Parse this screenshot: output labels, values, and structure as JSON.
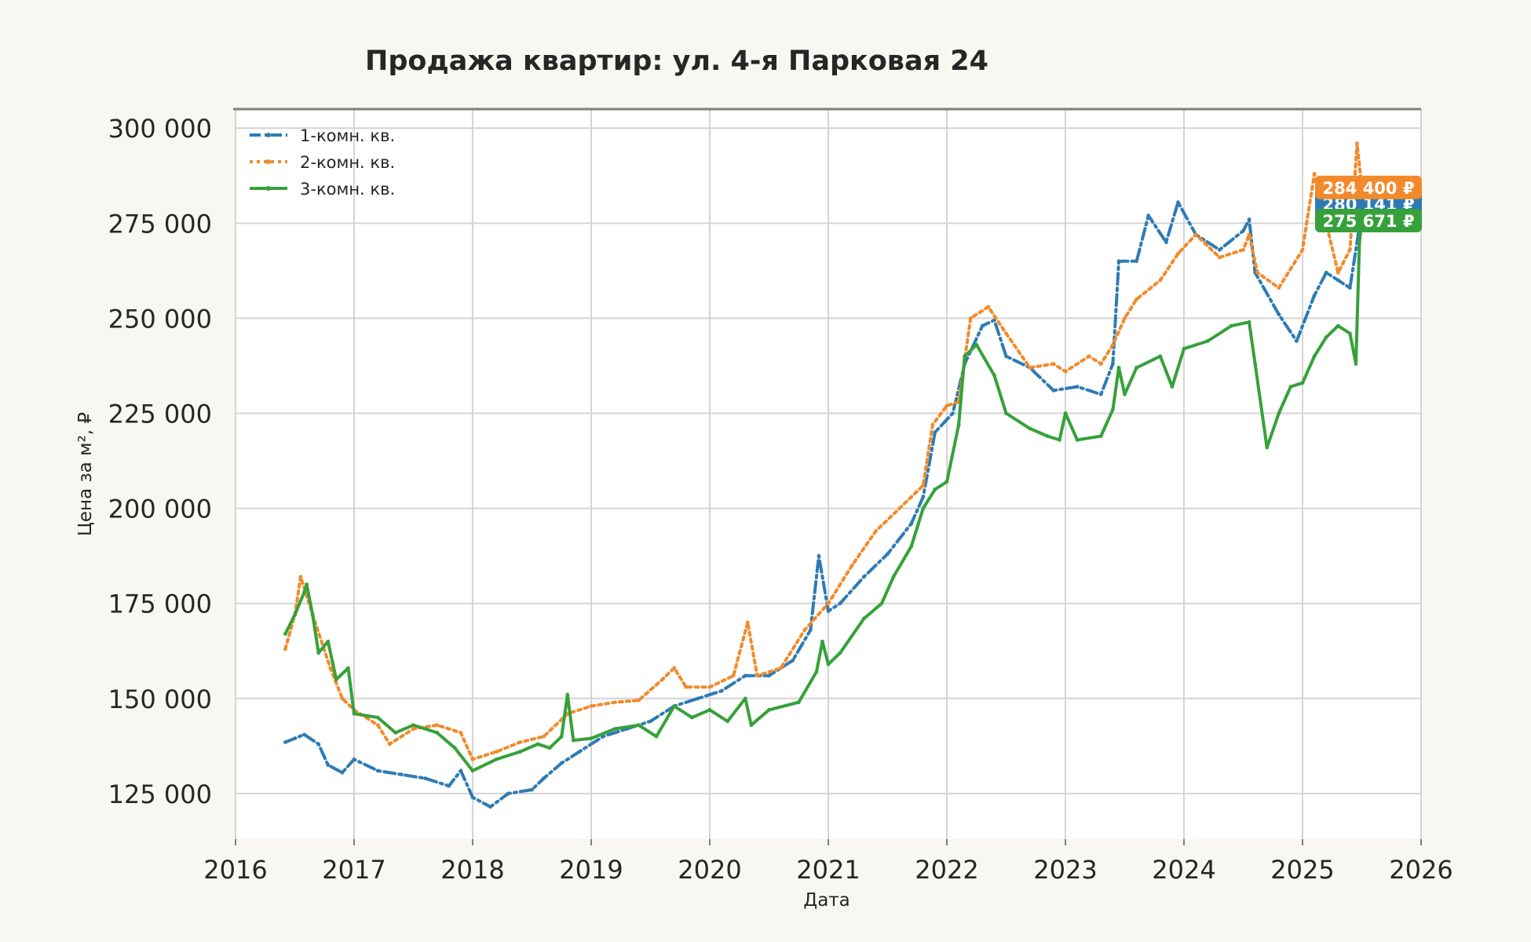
{
  "chart_data": {
    "type": "line",
    "title": "Продажа квартир: ул. 4-я Парковая 24",
    "xlabel": "Дата",
    "ylabel": "Цена за м², ₽",
    "xlim": [
      2016,
      2026
    ],
    "ylim": [
      113000,
      305000
    ],
    "x_ticks": [
      2016,
      2017,
      2018,
      2019,
      2020,
      2021,
      2022,
      2023,
      2024,
      2025,
      2026
    ],
    "x_tick_labels": [
      "2016",
      "2017",
      "2018",
      "2019",
      "2020",
      "2021",
      "2022",
      "2023",
      "2024",
      "2025",
      "2026"
    ],
    "y_ticks": [
      125000,
      150000,
      175000,
      200000,
      225000,
      250000,
      275000,
      300000
    ],
    "y_tick_labels": [
      "125 000",
      "150 000",
      "175 000",
      "200 000",
      "225 000",
      "250 000",
      "275 000",
      "300 000"
    ],
    "grid": true,
    "legend_position": "top-left",
    "series": [
      {
        "name": "1-комн. кв.",
        "color": "#2e7bb4",
        "dash": "dashdot",
        "last_value_label": "280 141 ₽",
        "points": [
          [
            2016.42,
            138500
          ],
          [
            2016.5,
            139500
          ],
          [
            2016.58,
            140500
          ],
          [
            2016.7,
            138000
          ],
          [
            2016.78,
            132500
          ],
          [
            2016.9,
            130500
          ],
          [
            2017.0,
            134000
          ],
          [
            2017.2,
            131000
          ],
          [
            2017.4,
            130000
          ],
          [
            2017.6,
            129000
          ],
          [
            2017.8,
            127000
          ],
          [
            2017.9,
            131000
          ],
          [
            2018.0,
            124000
          ],
          [
            2018.15,
            121500
          ],
          [
            2018.3,
            125000
          ],
          [
            2018.5,
            126000
          ],
          [
            2018.6,
            129000
          ],
          [
            2018.75,
            133000
          ],
          [
            2018.9,
            136000
          ],
          [
            2019.1,
            140000
          ],
          [
            2019.3,
            142000
          ],
          [
            2019.5,
            144000
          ],
          [
            2019.7,
            148000
          ],
          [
            2019.9,
            150000
          ],
          [
            2020.1,
            152000
          ],
          [
            2020.3,
            156000
          ],
          [
            2020.5,
            156000
          ],
          [
            2020.7,
            160000
          ],
          [
            2020.85,
            168000
          ],
          [
            2020.92,
            187500
          ],
          [
            2021.0,
            173000
          ],
          [
            2021.1,
            175000
          ],
          [
            2021.3,
            182000
          ],
          [
            2021.5,
            188000
          ],
          [
            2021.7,
            196000
          ],
          [
            2021.8,
            203000
          ],
          [
            2021.9,
            220000
          ],
          [
            2022.05,
            225000
          ],
          [
            2022.15,
            238000
          ],
          [
            2022.3,
            248000
          ],
          [
            2022.4,
            249500
          ],
          [
            2022.5,
            240000
          ],
          [
            2022.7,
            237000
          ],
          [
            2022.9,
            231000
          ],
          [
            2023.1,
            232000
          ],
          [
            2023.3,
            230000
          ],
          [
            2023.4,
            238000
          ],
          [
            2023.45,
            265000
          ],
          [
            2023.6,
            265000
          ],
          [
            2023.7,
            277000
          ],
          [
            2023.85,
            270000
          ],
          [
            2023.95,
            280500
          ],
          [
            2024.1,
            272000
          ],
          [
            2024.3,
            268000
          ],
          [
            2024.5,
            273000
          ],
          [
            2024.55,
            276000
          ],
          [
            2024.6,
            262000
          ],
          [
            2024.8,
            251000
          ],
          [
            2024.95,
            244000
          ],
          [
            2025.1,
            256000
          ],
          [
            2025.2,
            262000
          ],
          [
            2025.3,
            260000
          ],
          [
            2025.4,
            258000
          ],
          [
            2025.47,
            272000
          ],
          [
            2025.5,
            280141
          ]
        ]
      },
      {
        "name": "2-комн. кв.",
        "color": "#f28a2b",
        "dash": "dotted",
        "last_value_label": "284 400 ₽",
        "points": [
          [
            2016.42,
            163000
          ],
          [
            2016.5,
            172000
          ],
          [
            2016.55,
            182000
          ],
          [
            2016.65,
            172000
          ],
          [
            2016.8,
            158000
          ],
          [
            2016.9,
            150000
          ],
          [
            2017.0,
            147000
          ],
          [
            2017.2,
            143000
          ],
          [
            2017.3,
            138000
          ],
          [
            2017.5,
            142000
          ],
          [
            2017.7,
            143000
          ],
          [
            2017.9,
            141000
          ],
          [
            2018.0,
            134000
          ],
          [
            2018.2,
            136000
          ],
          [
            2018.4,
            138500
          ],
          [
            2018.6,
            140000
          ],
          [
            2018.8,
            146000
          ],
          [
            2019.0,
            148000
          ],
          [
            2019.2,
            149000
          ],
          [
            2019.4,
            149500
          ],
          [
            2019.6,
            155000
          ],
          [
            2019.7,
            158000
          ],
          [
            2019.8,
            153000
          ],
          [
            2020.0,
            153000
          ],
          [
            2020.2,
            156000
          ],
          [
            2020.32,
            170000
          ],
          [
            2020.4,
            156000
          ],
          [
            2020.6,
            158000
          ],
          [
            2020.8,
            168000
          ],
          [
            2021.0,
            175000
          ],
          [
            2021.2,
            185000
          ],
          [
            2021.4,
            194000
          ],
          [
            2021.6,
            200000
          ],
          [
            2021.8,
            206000
          ],
          [
            2021.88,
            222000
          ],
          [
            2022.0,
            227000
          ],
          [
            2022.1,
            228000
          ],
          [
            2022.2,
            250000
          ],
          [
            2022.35,
            253000
          ],
          [
            2022.5,
            246000
          ],
          [
            2022.7,
            237000
          ],
          [
            2022.9,
            238000
          ],
          [
            2023.0,
            236000
          ],
          [
            2023.2,
            240000
          ],
          [
            2023.3,
            238000
          ],
          [
            2023.4,
            243000
          ],
          [
            2023.5,
            250000
          ],
          [
            2023.6,
            255000
          ],
          [
            2023.8,
            260000
          ],
          [
            2023.95,
            267000
          ],
          [
            2024.1,
            272000
          ],
          [
            2024.3,
            266000
          ],
          [
            2024.5,
            268000
          ],
          [
            2024.55,
            272000
          ],
          [
            2024.62,
            262000
          ],
          [
            2024.8,
            258000
          ],
          [
            2025.0,
            268000
          ],
          [
            2025.1,
            288000
          ],
          [
            2025.2,
            275000
          ],
          [
            2025.3,
            262000
          ],
          [
            2025.4,
            268000
          ],
          [
            2025.46,
            296000
          ],
          [
            2025.5,
            284400
          ]
        ]
      },
      {
        "name": "3-комн. кв.",
        "color": "#36a13a",
        "dash": "solid",
        "last_value_label": "275 671 ₽",
        "points": [
          [
            2016.42,
            167000
          ],
          [
            2016.5,
            172000
          ],
          [
            2016.58,
            178000
          ],
          [
            2016.6,
            180000
          ],
          [
            2016.65,
            172000
          ],
          [
            2016.7,
            162000
          ],
          [
            2016.78,
            165000
          ],
          [
            2016.85,
            155000
          ],
          [
            2016.95,
            158000
          ],
          [
            2017.0,
            146000
          ],
          [
            2017.2,
            145000
          ],
          [
            2017.35,
            141000
          ],
          [
            2017.5,
            143000
          ],
          [
            2017.7,
            141000
          ],
          [
            2017.85,
            137000
          ],
          [
            2018.0,
            131000
          ],
          [
            2018.2,
            134000
          ],
          [
            2018.4,
            136000
          ],
          [
            2018.55,
            138000
          ],
          [
            2018.65,
            137000
          ],
          [
            2018.75,
            140000
          ],
          [
            2018.8,
            151000
          ],
          [
            2018.85,
            139000
          ],
          [
            2019.0,
            139500
          ],
          [
            2019.2,
            142000
          ],
          [
            2019.4,
            143000
          ],
          [
            2019.55,
            140000
          ],
          [
            2019.7,
            148000
          ],
          [
            2019.85,
            145000
          ],
          [
            2020.0,
            147000
          ],
          [
            2020.15,
            144000
          ],
          [
            2020.3,
            150000
          ],
          [
            2020.35,
            143000
          ],
          [
            2020.5,
            147000
          ],
          [
            2020.75,
            149000
          ],
          [
            2020.9,
            157000
          ],
          [
            2020.95,
            165000
          ],
          [
            2021.0,
            159000
          ],
          [
            2021.1,
            162000
          ],
          [
            2021.3,
            171000
          ],
          [
            2021.45,
            175000
          ],
          [
            2021.55,
            182000
          ],
          [
            2021.7,
            190000
          ],
          [
            2021.8,
            200000
          ],
          [
            2021.9,
            205000
          ],
          [
            2022.0,
            207000
          ],
          [
            2022.1,
            222000
          ],
          [
            2022.15,
            240000
          ],
          [
            2022.25,
            243000
          ],
          [
            2022.4,
            235000
          ],
          [
            2022.5,
            225000
          ],
          [
            2022.7,
            221000
          ],
          [
            2022.85,
            219000
          ],
          [
            2022.95,
            218000
          ],
          [
            2023.0,
            225000
          ],
          [
            2023.1,
            218000
          ],
          [
            2023.3,
            219000
          ],
          [
            2023.4,
            226000
          ],
          [
            2023.45,
            237000
          ],
          [
            2023.5,
            230000
          ],
          [
            2023.6,
            237000
          ],
          [
            2023.8,
            240000
          ],
          [
            2023.9,
            232000
          ],
          [
            2024.0,
            242000
          ],
          [
            2024.2,
            244000
          ],
          [
            2024.4,
            248000
          ],
          [
            2024.55,
            249000
          ],
          [
            2024.6,
            238000
          ],
          [
            2024.7,
            216000
          ],
          [
            2024.8,
            225000
          ],
          [
            2024.9,
            232000
          ],
          [
            2025.0,
            233000
          ],
          [
            2025.1,
            240000
          ],
          [
            2025.2,
            245000
          ],
          [
            2025.3,
            248000
          ],
          [
            2025.4,
            246000
          ],
          [
            2025.45,
            238000
          ],
          [
            2025.48,
            270000
          ],
          [
            2025.5,
            275671
          ]
        ]
      }
    ]
  }
}
